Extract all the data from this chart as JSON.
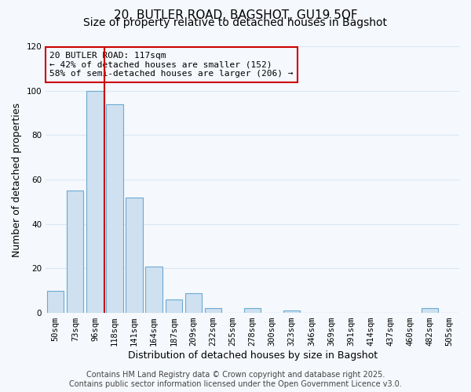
{
  "title": "20, BUTLER ROAD, BAGSHOT, GU19 5QF",
  "subtitle": "Size of property relative to detached houses in Bagshot",
  "xlabel": "Distribution of detached houses by size in Bagshot",
  "ylabel": "Number of detached properties",
  "bar_labels": [
    "50sqm",
    "73sqm",
    "96sqm",
    "118sqm",
    "141sqm",
    "164sqm",
    "187sqm",
    "209sqm",
    "232sqm",
    "255sqm",
    "278sqm",
    "300sqm",
    "323sqm",
    "346sqm",
    "369sqm",
    "391sqm",
    "414sqm",
    "437sqm",
    "460sqm",
    "482sqm",
    "505sqm"
  ],
  "bar_values": [
    10,
    55,
    100,
    94,
    52,
    21,
    6,
    9,
    2,
    0,
    2,
    0,
    1,
    0,
    0,
    0,
    0,
    0,
    0,
    2,
    0
  ],
  "bar_color": "#cfe0f0",
  "bar_edge_color": "#6aaad4",
  "ylim": [
    0,
    120
  ],
  "yticks": [
    0,
    20,
    40,
    60,
    80,
    100,
    120
  ],
  "vline_color": "#cc0000",
  "vline_index": 3,
  "annotation_title": "20 BUTLER ROAD: 117sqm",
  "annotation_line1": "← 42% of detached houses are smaller (152)",
  "annotation_line2": "58% of semi-detached houses are larger (206) →",
  "annotation_box_edgecolor": "#cc0000",
  "footer1": "Contains HM Land Registry data © Crown copyright and database right 2025.",
  "footer2": "Contains public sector information licensed under the Open Government Licence v3.0.",
  "background_color": "#f5f8fc",
  "grid_color": "#dce8f5",
  "title_fontsize": 11,
  "subtitle_fontsize": 10,
  "axis_label_fontsize": 9,
  "tick_fontsize": 7.5,
  "annotation_fontsize": 8,
  "footer_fontsize": 7
}
